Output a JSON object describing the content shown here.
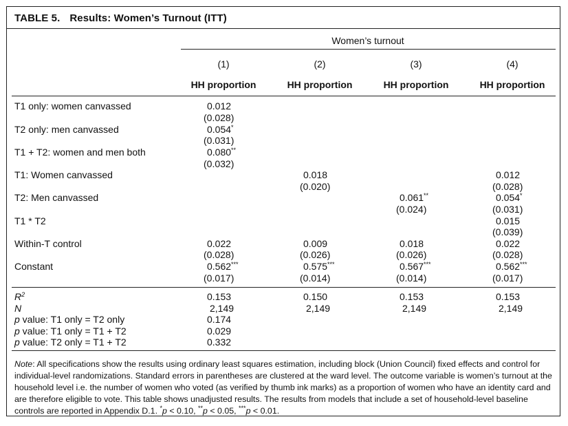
{
  "title": {
    "number": "TABLE 5.",
    "text": "Results: Women’s Turnout (ITT)"
  },
  "header": {
    "group_label": "Women’s turnout",
    "columns": [
      {
        "number": "(1)",
        "label": "HH proportion"
      },
      {
        "number": "(2)",
        "label": "HH proportion"
      },
      {
        "number": "(3)",
        "label": "HH proportion"
      },
      {
        "number": "(4)",
        "label": "HH proportion"
      }
    ]
  },
  "rows": {
    "t1_only": {
      "label": "T1 only: women canvassed",
      "c1": "0.012",
      "c1_se": "(0.028)"
    },
    "t2_only": {
      "label": "T2 only: men canvassed",
      "c1": "0.054",
      "c1_sig": "*",
      "c1_se": "(0.031)"
    },
    "t1_t2": {
      "label": "T1 + T2: women and men both",
      "c1": "0.080",
      "c1_sig": "**",
      "c1_se": "(0.032)"
    },
    "t1_women": {
      "label": "T1: Women canvassed",
      "c2": "0.018",
      "c2_se": "(0.020)",
      "c4": "0.012",
      "c4_se": "(0.028)"
    },
    "t2_men": {
      "label": "T2: Men canvassed",
      "c3": "0.061",
      "c3_sig": "**",
      "c3_se": "(0.024)",
      "c4": "0.054",
      "c4_sig": "*",
      "c4_se": "(0.031)"
    },
    "t1xt2": {
      "label": "T1 * T2",
      "c4": "0.015",
      "c4_se": "(0.039)"
    },
    "within_t": {
      "label": "Within-T control",
      "c1": "0.022",
      "c1_se": "(0.028)",
      "c2": "0.009",
      "c2_se": "(0.026)",
      "c3": "0.018",
      "c3_se": "(0.026)",
      "c4": "0.022",
      "c4_se": "(0.028)"
    },
    "constant": {
      "label": "Constant",
      "c1": "0.562",
      "c1_sig": "***",
      "c1_se": "(0.017)",
      "c2": "0.575",
      "c2_sig": "***",
      "c2_se": "(0.014)",
      "c3": "0.567",
      "c3_sig": "***",
      "c3_se": "(0.014)",
      "c4": "0.562",
      "c4_sig": "***",
      "c4_se": "(0.017)"
    }
  },
  "stats": {
    "r2": {
      "label": "R",
      "sup": "2",
      "c1": "0.153",
      "c2": "0.150",
      "c3": "0.153",
      "c4": "0.153"
    },
    "n": {
      "label": "N",
      "c1": "2,149",
      "c2": "2,149",
      "c3": "2,149",
      "c4": "2,149"
    },
    "p1": {
      "label_pre": "p",
      "label_post": " value: T1 only = T2 only",
      "c1": "0.174"
    },
    "p2": {
      "label_pre": "p",
      "label_post": " value: T1 only = T1 + T2",
      "c1": "0.029"
    },
    "p3": {
      "label_pre": "p",
      "label_post": " value: T2 only = T1 + T2",
      "c1": "0.332"
    }
  },
  "note": {
    "lead": "Note",
    "body": ": All specifications show the results using ordinary least squares estimation, including block (Union Council) fixed effects and control for individual-level randomizations. Standard errors in parentheses are clustered at the ward level. The outcome variable is women’s turnout at the household level i.e. the number of women who voted (as verified by thumb ink marks) as a proportion of women who have an identity card and are therefore eligible to vote. This table shows unadjusted results. The results from models that include a set of household-level baseline controls are reported in Appendix D.1. ",
    "sig1_mark": "*",
    "sig1_p": "p",
    "sig1_val": " < 0.10, ",
    "sig2_mark": "**",
    "sig2_p": "p",
    "sig2_val": " < 0.05, ",
    "sig3_mark": "***",
    "sig3_p": "p",
    "sig3_val": " < 0.01."
  }
}
